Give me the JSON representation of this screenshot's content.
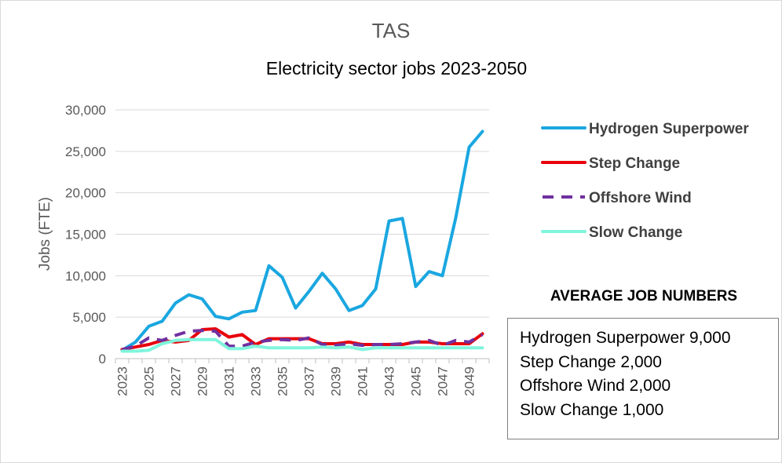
{
  "chart_data": {
    "type": "line",
    "supertitle": "TAS",
    "title": "Electricity sector jobs 2023-2050",
    "xlabel": "",
    "ylabel": "Jobs (FTE)",
    "ylim": [
      0,
      30000
    ],
    "yticks": [
      0,
      5000,
      10000,
      15000,
      20000,
      25000,
      30000
    ],
    "ytick_labels": [
      "0",
      "5,000",
      "10,000",
      "15,000",
      "20,000",
      "25,000",
      "30,000"
    ],
    "x": [
      2023,
      2024,
      2025,
      2026,
      2027,
      2028,
      2029,
      2030,
      2031,
      2032,
      2033,
      2034,
      2035,
      2036,
      2037,
      2038,
      2039,
      2040,
      2041,
      2042,
      2043,
      2044,
      2045,
      2046,
      2047,
      2048,
      2049,
      2050
    ],
    "xtick_labels": [
      "2023",
      "2025",
      "2027",
      "2029",
      "2031",
      "2033",
      "2035",
      "2037",
      "2039",
      "2041",
      "2043",
      "2045",
      "2047",
      "2049"
    ],
    "grid": true,
    "legend_position": "right",
    "series": [
      {
        "name": "Hydrogen Superpower",
        "color": "#1aa7e0",
        "style": "solid",
        "values": [
          1000,
          2000,
          3900,
          4500,
          6700,
          7700,
          7200,
          5100,
          4800,
          5600,
          5800,
          11200,
          9800,
          6100,
          8100,
          10300,
          8400,
          5800,
          6400,
          8400,
          16600,
          16900,
          8700,
          10500,
          10000,
          17000,
          25500,
          27400
        ]
      },
      {
        "name": "Step Change",
        "color": "#e8000b",
        "style": "solid",
        "values": [
          1100,
          1400,
          1700,
          2200,
          2000,
          2200,
          3500,
          3600,
          2600,
          2900,
          1700,
          2400,
          2400,
          2400,
          2400,
          1800,
          1800,
          2000,
          1700,
          1700,
          1700,
          1700,
          2000,
          2000,
          1800,
          1800,
          1800,
          3000
        ]
      },
      {
        "name": "Offshore Wind",
        "color": "#7030a0",
        "style": "dashed",
        "values": [
          1100,
          1500,
          2500,
          2200,
          2800,
          3300,
          3400,
          3300,
          1500,
          1500,
          2000,
          2200,
          2300,
          2200,
          2500,
          1700,
          1600,
          1800,
          1600,
          1700,
          1700,
          1800,
          2000,
          2200,
          1600,
          2200,
          2000,
          2900
        ]
      },
      {
        "name": "Slow Change",
        "color": "#7ff5dc",
        "style": "solid",
        "values": [
          900,
          900,
          1000,
          1800,
          2200,
          2300,
          2300,
          2300,
          1200,
          1200,
          1500,
          1300,
          1300,
          1300,
          1300,
          1400,
          1300,
          1400,
          1100,
          1300,
          1300,
          1300,
          1300,
          1300,
          1300,
          1300,
          1300,
          1300
        ]
      }
    ],
    "annotation": {
      "heading": "AVERAGE JOB NUMBERS",
      "lines": [
        "Hydrogen Superpower 9,000",
        "Step Change 2,000",
        "Offshore Wind 2,000",
        "Slow Change 1,000"
      ]
    }
  }
}
